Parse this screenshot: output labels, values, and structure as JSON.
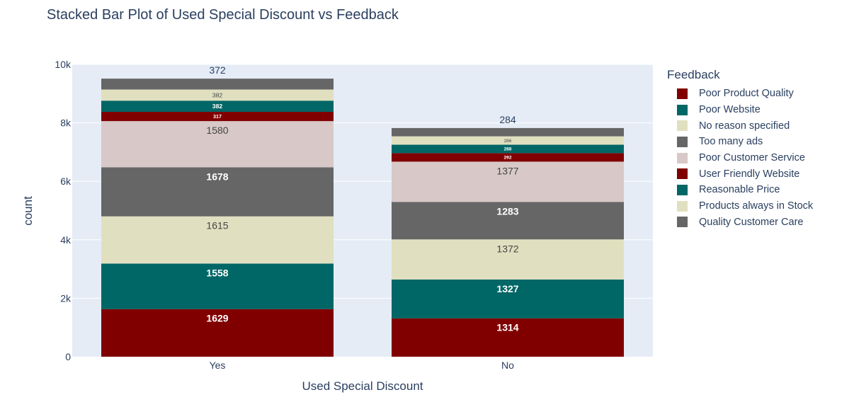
{
  "chart_data": {
    "type": "bar",
    "barmode": "stack",
    "title": "Stacked Bar Plot of Used Special Discount vs Feedback",
    "xlabel": "Used Special Discount",
    "ylabel": "count",
    "categories": [
      "Yes",
      "No"
    ],
    "ylim": [
      0,
      10000
    ],
    "yticks": [
      0,
      2000,
      4000,
      6000,
      8000,
      10000
    ],
    "ytick_labels": [
      "0",
      "2k",
      "4k",
      "6k",
      "8k",
      "10k"
    ],
    "grid": true,
    "legend_title": "Feedback",
    "legend_position": "right",
    "plot_background": "#e5ecf6",
    "series": [
      {
        "name": "Poor Product Quality",
        "color": "#800000",
        "values": [
          1629,
          1314
        ],
        "label_color": "#ffffff"
      },
      {
        "name": "Poor Website",
        "color": "#006666",
        "values": [
          1558,
          1327
        ],
        "label_color": "#ffffff"
      },
      {
        "name": "No reason specified",
        "color": "#e0e0c0",
        "values": [
          1615,
          1372
        ],
        "label_color": "#444444"
      },
      {
        "name": "Too many ads",
        "color": "#666666",
        "values": [
          1678,
          1283
        ],
        "label_color": "#ffffff"
      },
      {
        "name": "Poor Customer Service",
        "color": "#d8c8c8",
        "values": [
          1580,
          1377
        ],
        "label_color": "#444444"
      },
      {
        "name": "User Friendly Website",
        "color": "#800000",
        "values": [
          317,
          292
        ],
        "label_color": "#ffffff"
      },
      {
        "name": "Reasonable Price",
        "color": "#006666",
        "values": [
          382,
          288
        ],
        "label_color": "#ffffff"
      },
      {
        "name": "Products always in Stock",
        "color": "#e0e0c0",
        "values": [
          382,
          286
        ],
        "label_color": "#444444"
      },
      {
        "name": "Quality Customer Care",
        "color": "#666666",
        "values": [
          372,
          284
        ],
        "label_color": "#2a3f5f"
      }
    ]
  }
}
